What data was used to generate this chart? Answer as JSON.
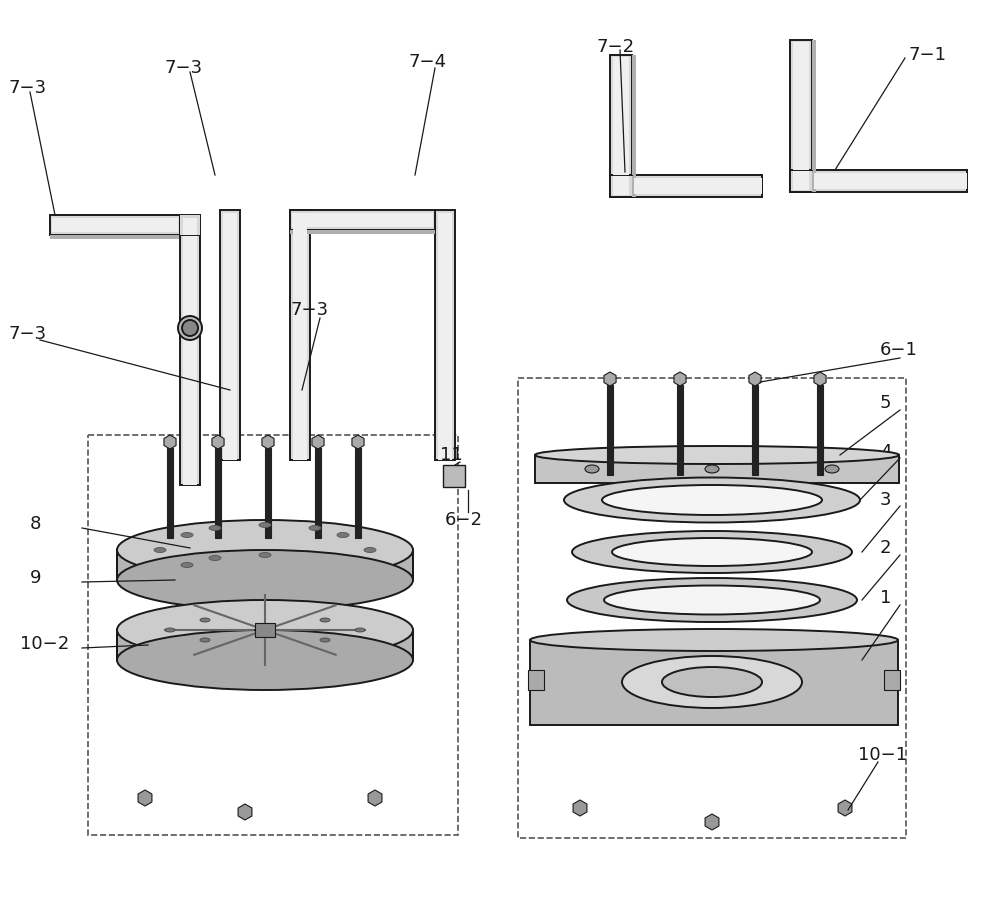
{
  "bg": "#ffffff",
  "lc": "#1a1a1a",
  "lw": 1.4,
  "pipe_face": "#d8d8d8",
  "pipe_dark": "#b0b0b0",
  "pipe_light": "#efefef",
  "disc_face": "#cccccc",
  "disc_side": "#aaaaaa",
  "plate_face": "#c8c8c8",
  "bolt_dark": "#222222",
  "nut_face": "#888888",
  "fs": 13,
  "fs_small": 11
}
